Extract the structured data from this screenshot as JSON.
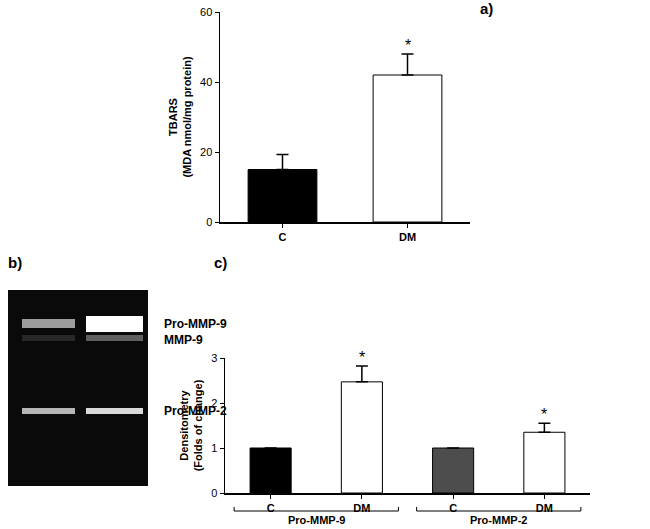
{
  "chart_data": [
    {
      "type": "bar",
      "title": "a)",
      "categories": [
        "C",
        "DM"
      ],
      "values": [
        15,
        42
      ],
      "errors": [
        4.3,
        6
      ],
      "colors": [
        "#000000",
        "#ffffff"
      ],
      "ylabel": [
        "TBARS",
        "(MDA nmol/mg protein)"
      ],
      "ylim": [
        0,
        60
      ],
      "yticks": [
        0,
        20,
        40,
        60
      ],
      "annotations": [
        {
          "category": 1,
          "text": "*"
        }
      ]
    },
    {
      "type": "bar",
      "title": "c)",
      "categories": [
        "C",
        "DM",
        "C",
        "DM"
      ],
      "values": [
        1,
        2.47,
        1,
        1.35
      ],
      "errors": [
        null,
        0.35,
        null,
        0.2
      ],
      "colors": [
        "#000000",
        "#ffffff",
        "#4d4d4d",
        "#ffffff"
      ],
      "groups": [
        {
          "label": "Pro-MMP-9",
          "categories": [
            0,
            1
          ]
        },
        {
          "label": "Pro-MMP-2",
          "categories": [
            2,
            3
          ]
        }
      ],
      "ylabel": [
        "Densitometry",
        "(Folds of change)"
      ],
      "ylim": [
        0,
        3
      ],
      "yticks": [
        0,
        1,
        2,
        3
      ],
      "annotations": [
        {
          "category": 1,
          "text": "*"
        },
        {
          "category": 3,
          "text": "*"
        }
      ]
    }
  ],
  "gel": {
    "title": "b)",
    "bands": [
      "Pro-MMP-9",
      "MMP-9",
      "Pro-MMP-2"
    ]
  }
}
